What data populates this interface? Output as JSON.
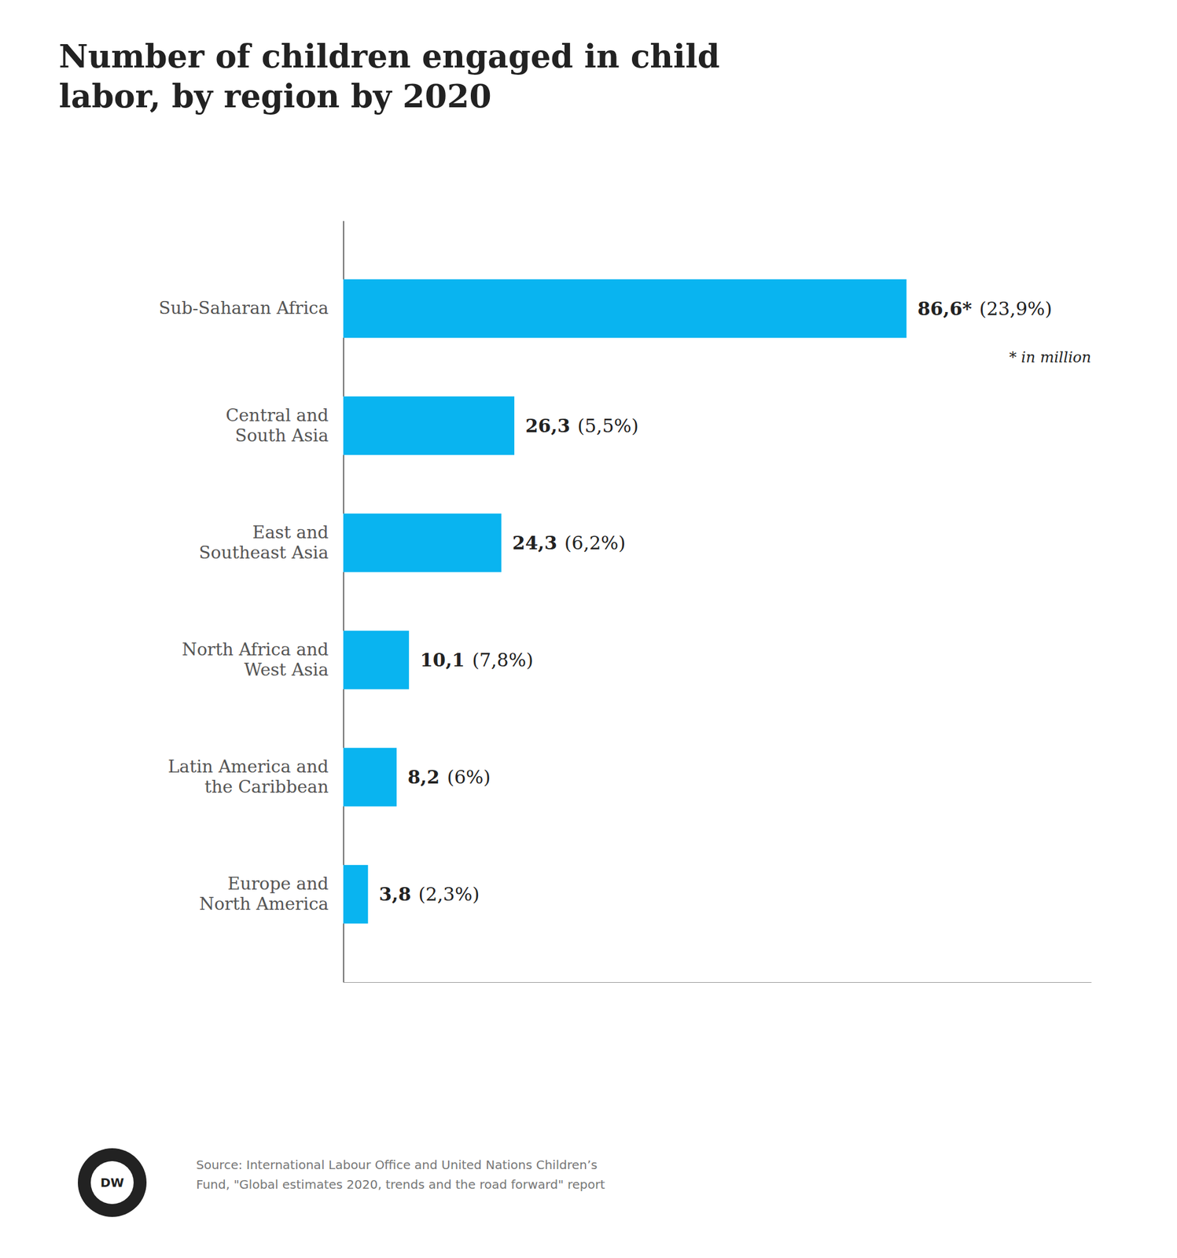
{
  "chart_data": {
    "type": "bar",
    "orientation": "horizontal",
    "title": "Number of children engaged in child\nlabor, by region by 2020",
    "categories": [
      "Sub-Saharan Africa",
      "Central and\nSouth Asia",
      "East and\nSoutheast Asia",
      "North Africa and\nWest Asia",
      "Latin America and\nthe Caribbean",
      "Europe and\nNorth America"
    ],
    "values": [
      86.6,
      26.3,
      24.3,
      10.1,
      8.2,
      3.8
    ],
    "value_labels": [
      "86,6*",
      "26,3",
      "24,3",
      "10,1",
      "8,2",
      "3,8"
    ],
    "share_labels": [
      "(23,9%)",
      "(5,5%)",
      "(6,2%)",
      "(7,8%)",
      "(6%)",
      "(2,3%)"
    ],
    "data_labels": true,
    "color": "#09b4f0",
    "xlim": [
      0,
      115
    ],
    "tick_labels": "y",
    "annotation": "* in million",
    "source_text": "Source: International Labour Office and United Nations Children’s\nFund, \"Global estimates 2020, trends and the road forward\" report",
    "logo_text": "DW"
  }
}
